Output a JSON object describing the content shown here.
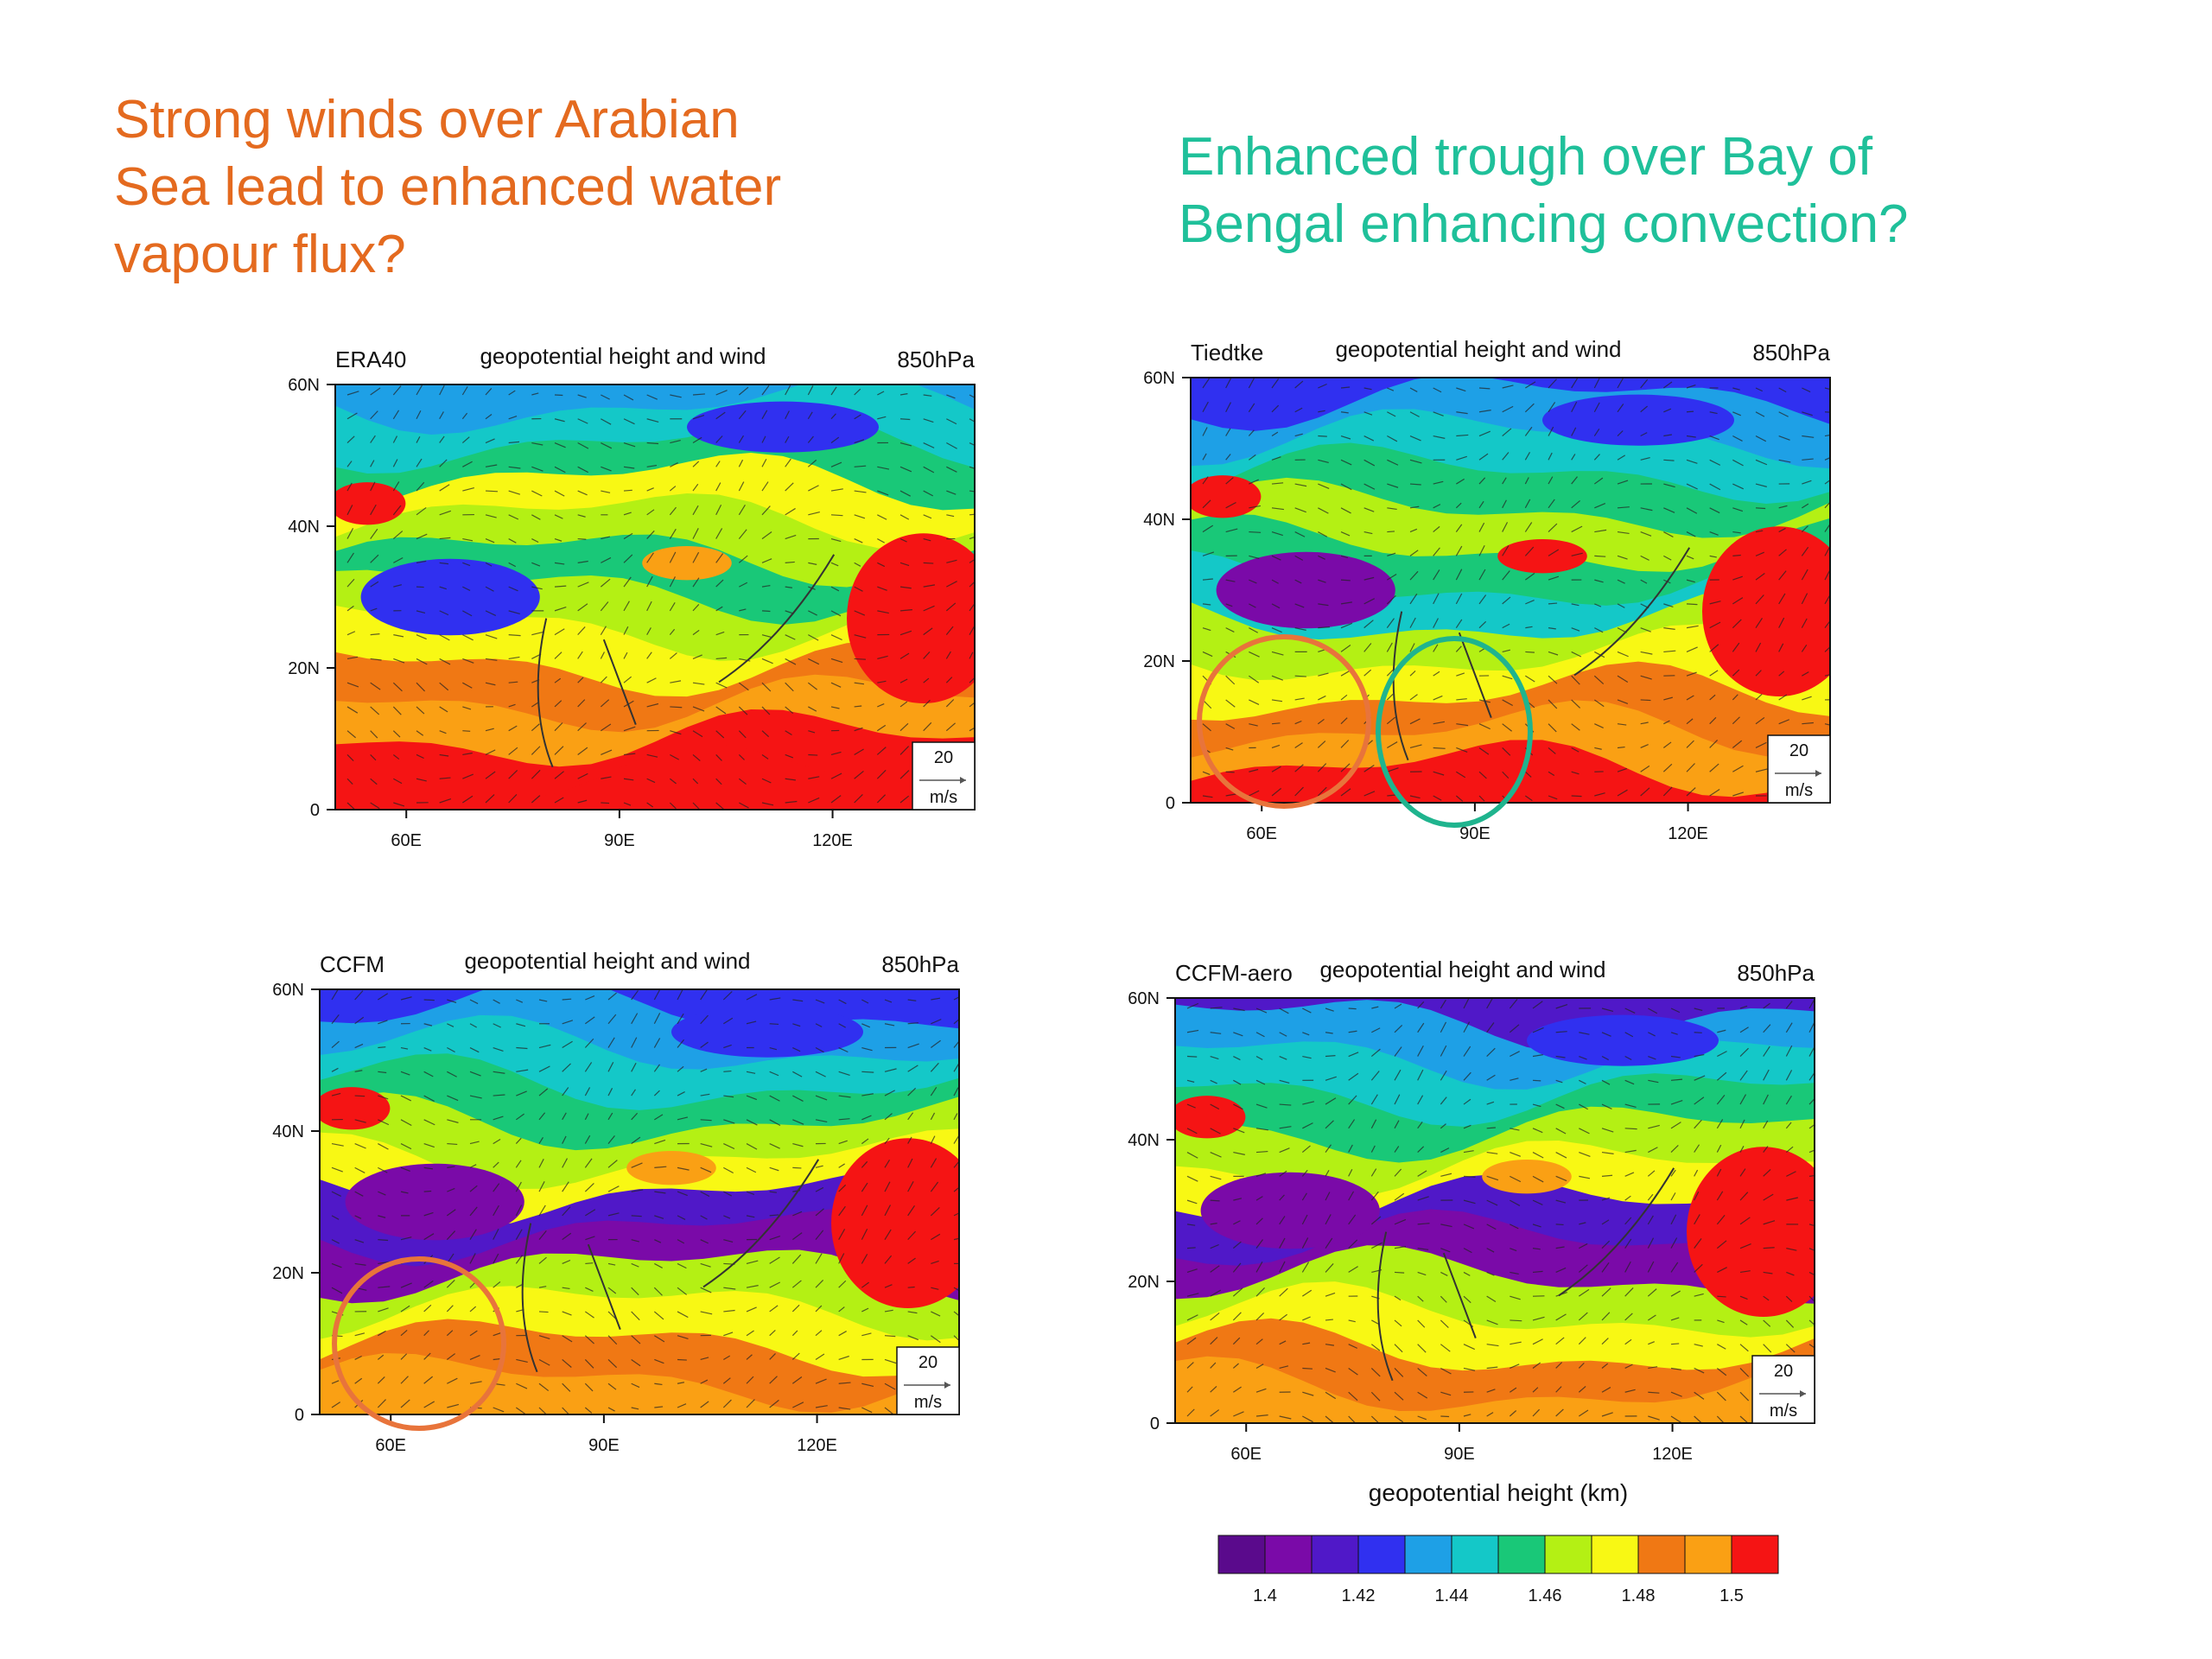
{
  "headlines": {
    "left": [
      "Strong winds over Arabian",
      "Sea lead to enhanced water",
      "vapour flux?"
    ],
    "right": [
      "Enhanced trough over Bay of",
      "Bengal enhancing convection?"
    ]
  },
  "colors": {
    "left_headline": "#e46a1f",
    "right_headline": "#1fc09a",
    "orange_marker": "#e8743b",
    "teal_marker": "#1fb48e"
  },
  "colorbar": {
    "title": "geopotential height (km)",
    "colors": [
      "#5a0a8c",
      "#7a0aa8",
      "#5018c8",
      "#3030f0",
      "#1ea0e6",
      "#14c8c8",
      "#19c878",
      "#b4f014",
      "#f8f814",
      "#f07814",
      "#faa014",
      "#f51414"
    ],
    "tick_labels": [
      "1.4",
      "1.42",
      "1.44",
      "1.46",
      "1.48",
      "1.5"
    ]
  },
  "chart_data": [
    {
      "type": "heatmap",
      "left_label": "ERA40",
      "center_label": "geopotential height and wind",
      "right_label": "850hPa",
      "x_ticks": [
        "60E",
        "90E",
        "120E"
      ],
      "y_ticks": [
        "60N",
        "40N",
        "20N",
        "0"
      ],
      "xlim": [
        50,
        140
      ],
      "ylim": [
        0,
        60
      ],
      "ref_vector": {
        "value": "20",
        "unit": "m/s"
      }
    },
    {
      "type": "heatmap",
      "left_label": "Tiedtke",
      "center_label": "geopotential height and wind",
      "right_label": "850hPa",
      "x_ticks": [
        "60E",
        "90E",
        "120E"
      ],
      "y_ticks": [
        "60N",
        "40N",
        "20N",
        "0"
      ],
      "xlim": [
        50,
        140
      ],
      "ylim": [
        0,
        60
      ],
      "ref_vector": {
        "value": "20",
        "unit": "m/s"
      }
    },
    {
      "type": "heatmap",
      "left_label": "CCFM",
      "center_label": "geopotential height and wind",
      "right_label": "850hPa",
      "x_ticks": [
        "60E",
        "90E",
        "120E"
      ],
      "y_ticks": [
        "60N",
        "40N",
        "20N",
        "0"
      ],
      "xlim": [
        50,
        140
      ],
      "ylim": [
        0,
        60
      ],
      "ref_vector": {
        "value": "20",
        "unit": "m/s"
      }
    },
    {
      "type": "heatmap",
      "left_label": "CCFM-aero",
      "center_label": "geopotential height and wind",
      "right_label": "850hPa",
      "x_ticks": [
        "60E",
        "90E",
        "120E"
      ],
      "y_ticks": [
        "60N",
        "40N",
        "20N",
        "0"
      ],
      "xlim": [
        50,
        140
      ],
      "ylim": [
        0,
        60
      ],
      "ref_vector": {
        "value": "20",
        "unit": "m/s"
      }
    }
  ]
}
